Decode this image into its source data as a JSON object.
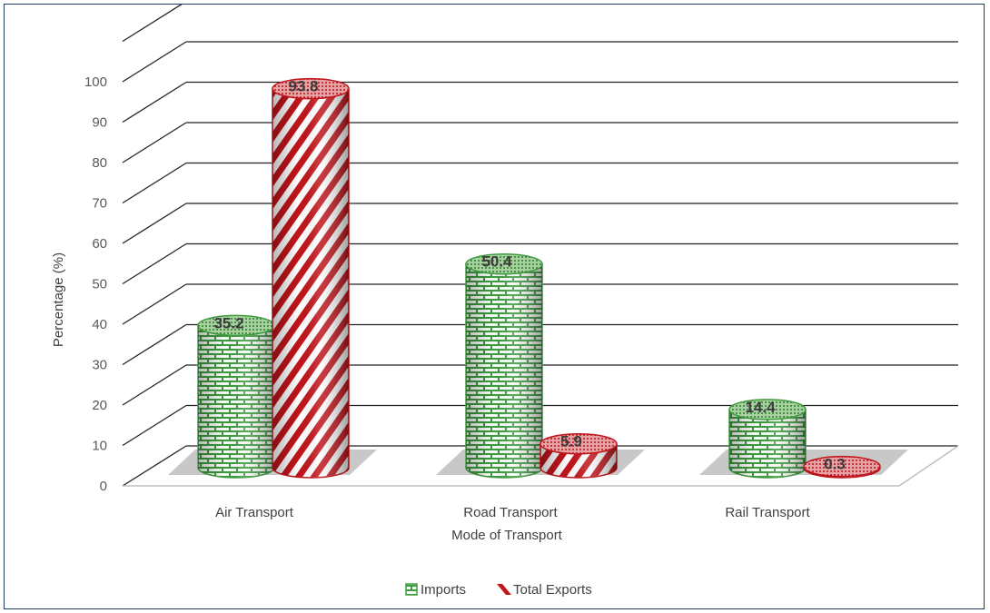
{
  "chart_data": {
    "type": "bar",
    "style": "3d-cylinder",
    "categories": [
      "Air Transport",
      "Road Transport",
      "Rail Transport"
    ],
    "series": [
      {
        "name": "Imports",
        "values": [
          35.2,
          50.4,
          14.4
        ],
        "color": "#3e9b3e",
        "pattern": "brick"
      },
      {
        "name": "Total Exports",
        "values": [
          93.8,
          5.9,
          0.3
        ],
        "color": "#c0151b",
        "pattern": "diagonal-stripes"
      }
    ],
    "data_labels": [
      "35.2",
      "93.8",
      "50.4",
      "5.9",
      "14.4",
      "0.3"
    ],
    "title": "",
    "xlabel": "Mode of Transport",
    "ylabel": "Percentage (%)",
    "ylim": [
      0,
      100
    ],
    "yticks": [
      "0",
      "10",
      "20",
      "30",
      "40",
      "50",
      "60",
      "70",
      "80",
      "90",
      "100"
    ],
    "grid": true,
    "legend_position": "bottom"
  }
}
